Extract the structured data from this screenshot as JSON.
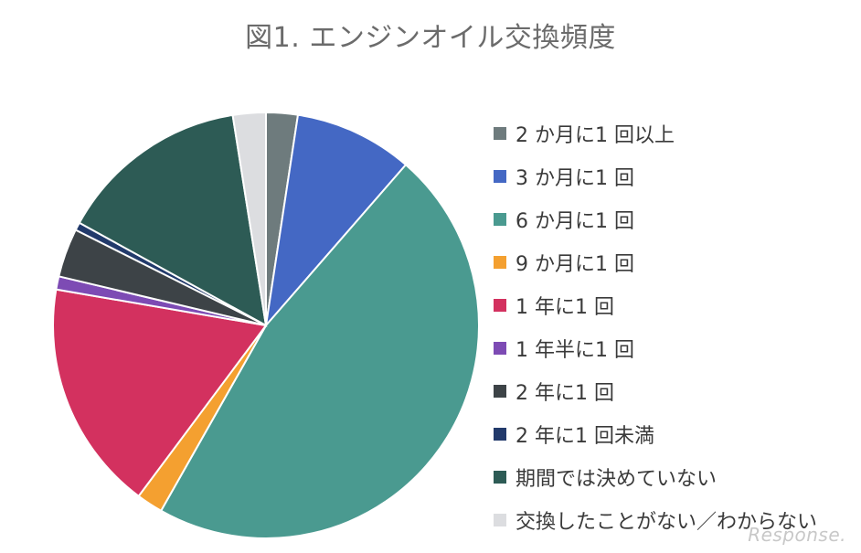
{
  "chart_data": {
    "type": "pie",
    "title": "図1. エンジンオイル交換頻度",
    "legend_position": "right",
    "slices": [
      {
        "label": "2 か月に1 回以上",
        "value": 2.4,
        "color": "#6e7b7d"
      },
      {
        "label": "3 か月に1 回",
        "value": 9.0,
        "color": "#4468c4"
      },
      {
        "label": "6 か月に1 回",
        "value": 46.8,
        "color": "#4a9a90"
      },
      {
        "label": "9 か月に1 回",
        "value": 2.0,
        "color": "#f4a030"
      },
      {
        "label": "1 年に1 回",
        "value": 17.5,
        "color": "#d3315f"
      },
      {
        "label": "1 年半に1 回",
        "value": 1.0,
        "color": "#7d4bb4"
      },
      {
        "label": "2 年に1 回",
        "value": 3.7,
        "color": "#3d4347"
      },
      {
        "label": "2 年に1 回未満",
        "value": 0.6,
        "color": "#223a6b"
      },
      {
        "label": "期間では決めていない",
        "value": 14.5,
        "color": "#2d5b55"
      },
      {
        "label": "交換したことがない／わからない",
        "value": 2.5,
        "color": "#dcdde0"
      }
    ]
  },
  "watermark": "Response."
}
